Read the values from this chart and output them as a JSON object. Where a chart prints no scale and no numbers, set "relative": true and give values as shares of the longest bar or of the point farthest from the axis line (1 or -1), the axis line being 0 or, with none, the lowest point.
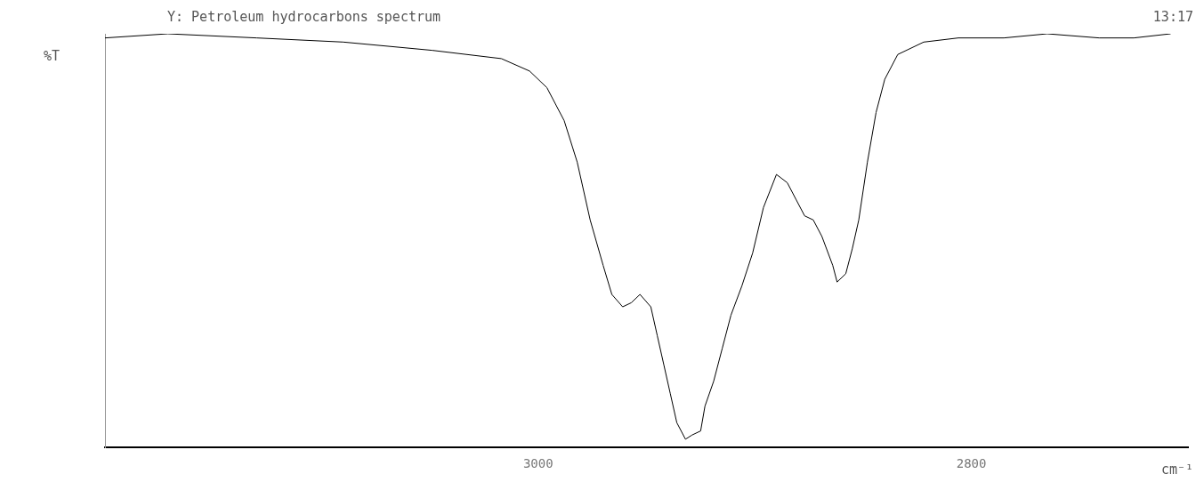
{
  "chart_data": {
    "type": "line",
    "title": "Y: Petroleum hydrocarbons spectrum",
    "ylabel": "%T",
    "xlabel": "cm⁻¹",
    "annotations": [
      "13:17"
    ],
    "relative": true,
    "x": [
      3200,
      3171,
      3130,
      3090,
      3049,
      3017,
      3004,
      2996,
      2988,
      2982,
      2976,
      2970,
      2966,
      2961,
      2957,
      2953,
      2948,
      2945,
      2942,
      2939,
      2936,
      2932,
      2929,
      2925,
      2923,
      2919,
      2915,
      2911,
      2906,
      2901,
      2896,
      2890,
      2885,
      2881,
      2877,
      2873,
      2869,
      2864,
      2862,
      2858,
      2855,
      2852,
      2848,
      2844,
      2840,
      2834,
      2822,
      2806,
      2785,
      2765,
      2741,
      2725,
      2708
    ],
    "series": [
      {
        "color": "#000000",
        "values": [
          0.99,
          1.0,
          0.99,
          0.98,
          0.96,
          0.94,
          0.91,
          0.87,
          0.79,
          0.69,
          0.55,
          0.44,
          0.37,
          0.34,
          0.35,
          0.37,
          0.34,
          0.27,
          0.2,
          0.13,
          0.06,
          0.02,
          0.03,
          0.04,
          0.1,
          0.16,
          0.24,
          0.32,
          0.39,
          0.47,
          0.58,
          0.66,
          0.64,
          0.6,
          0.56,
          0.55,
          0.51,
          0.44,
          0.4,
          0.42,
          0.48,
          0.55,
          0.69,
          0.81,
          0.89,
          0.95,
          0.98,
          0.99,
          0.99,
          1.0,
          0.99,
          0.99,
          1.0
        ]
      }
    ],
    "xlim": [
      3200,
      2700
    ],
    "xticks": [
      3000,
      2800
    ],
    "grid": false,
    "legend": false,
    "marker": "none",
    "line_style": "solid"
  }
}
